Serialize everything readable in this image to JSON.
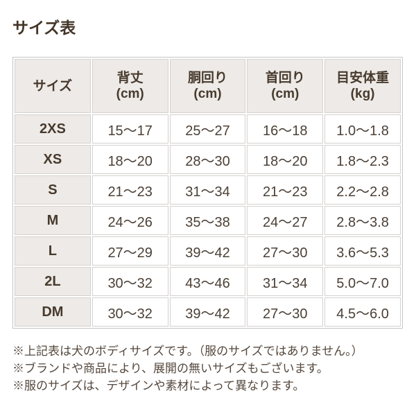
{
  "title": "サイズ表",
  "colors": {
    "page_bg": "#ffffff",
    "title_text": "#433527",
    "header_bg": "#edeae7",
    "header_text": "#473a2d",
    "cell_bg": "#ffffff",
    "cell_text": "#4b4036",
    "cell_border": "#d4d1ce",
    "outer_border": "#c8c4c1",
    "note_text": "#55483d"
  },
  "table": {
    "columns": [
      {
        "label": "サイズ",
        "unit": ""
      },
      {
        "label": "背丈",
        "unit": "(cm)"
      },
      {
        "label": "胴回り",
        "unit": "(cm)"
      },
      {
        "label": "首回り",
        "unit": "(cm)"
      },
      {
        "label": "目安体重",
        "unit": "(kg)"
      }
    ],
    "rows": [
      {
        "size": "2XS",
        "values": [
          "15〜17",
          "25〜27",
          "16〜18",
          "1.0〜1.8"
        ]
      },
      {
        "size": "XS",
        "values": [
          "18〜20",
          "28〜30",
          "18〜20",
          "1.8〜2.3"
        ]
      },
      {
        "size": "S",
        "values": [
          "21〜23",
          "31〜34",
          "21〜23",
          "2.2〜2.8"
        ]
      },
      {
        "size": "M",
        "values": [
          "24〜26",
          "35〜38",
          "24〜27",
          "2.8〜3.8"
        ]
      },
      {
        "size": "L",
        "values": [
          "27〜29",
          "39〜42",
          "27〜30",
          "3.6〜5.3"
        ]
      },
      {
        "size": "2L",
        "values": [
          "30〜32",
          "43〜46",
          "31〜34",
          "5.0〜7.0"
        ]
      },
      {
        "size": "DM",
        "values": [
          "30〜32",
          "39〜42",
          "27〜30",
          "4.5〜6.0"
        ]
      }
    ]
  },
  "footnotes": [
    "※上記表は犬のボディサイズです。（服のサイズではありません。）",
    "※ブランドや商品により、展開の無いサイズもございます。",
    "※服のサイズは、デザインや素材によって異なります。"
  ]
}
